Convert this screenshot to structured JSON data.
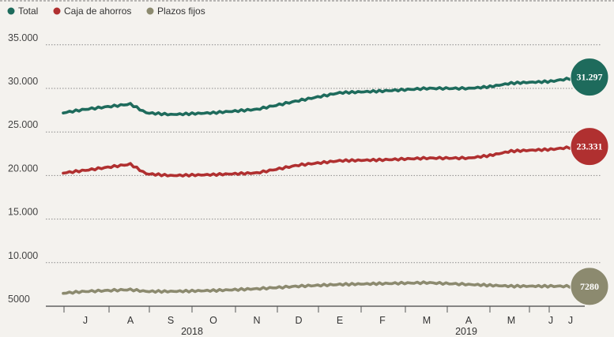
{
  "chart_data": {
    "type": "line",
    "title": "",
    "xlabel": "",
    "ylabel": "",
    "ylim": [
      5000,
      35000
    ],
    "y_ticks": [
      "35.000",
      "30.000",
      "25.000",
      "20.000",
      "15.000",
      "10.000",
      "5000"
    ],
    "y_tick_values": [
      35000,
      30000,
      25000,
      20000,
      15000,
      10000,
      5000
    ],
    "x_month_ticks": [
      "J",
      "A",
      "S",
      "O",
      "N",
      "D",
      "E",
      "F",
      "M",
      "A",
      "M",
      "J",
      "J"
    ],
    "x_year_labels": [
      "2018",
      "2019"
    ],
    "grid": true,
    "legend_position": "top-left",
    "x": [
      "2018-06",
      "2018-07",
      "2018-08",
      "2018-08-25",
      "2018-09",
      "2018-10",
      "2018-11",
      "2018-12",
      "2019-01",
      "2019-02",
      "2019-03",
      "2019-04",
      "2019-04-25",
      "2019-05",
      "2019-06",
      "2019-07"
    ],
    "series": [
      {
        "name": "Total",
        "color": "#1e6b5c",
        "values": [
          27200,
          27600,
          28200,
          27200,
          27000,
          27200,
          27600,
          28600,
          29500,
          29700,
          30000,
          30000,
          30200,
          30600,
          30800,
          31297
        ],
        "end_label": "31.297"
      },
      {
        "name": "Caja de ahorros",
        "color": "#b03030",
        "values": [
          20300,
          20600,
          21300,
          20200,
          20000,
          20100,
          20300,
          21200,
          21700,
          21800,
          22000,
          22000,
          22300,
          22800,
          23000,
          23331
        ],
        "end_label": "23.331"
      },
      {
        "name": "Plazos fijos",
        "color": "#8c8a6f",
        "values": [
          6500,
          6700,
          6900,
          6700,
          6700,
          6800,
          7000,
          7300,
          7500,
          7600,
          7700,
          7500,
          7400,
          7300,
          7300,
          7280
        ],
        "end_label": "7280"
      }
    ]
  }
}
